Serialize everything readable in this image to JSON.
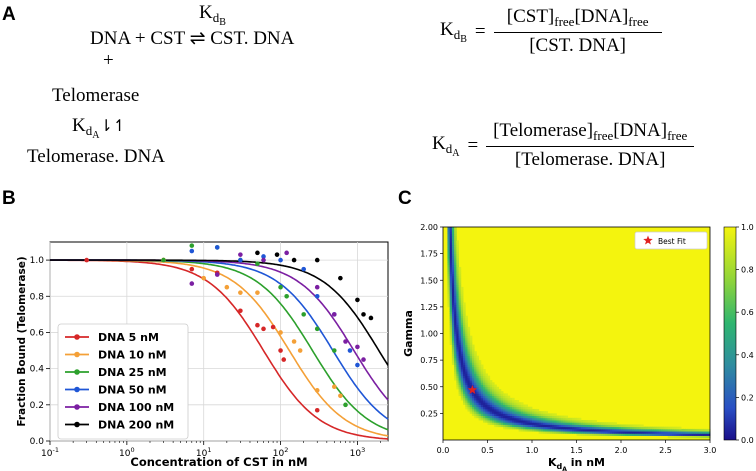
{
  "panel_a": {
    "letter": "A",
    "kdb_k": "K",
    "kdb_sub": "d",
    "kdb_subsub": "B",
    "reaction_top": "DNA + CST ⇌ CST. DNA",
    "plus": "+",
    "telomerase": "Telomerase",
    "kda_k": "K",
    "kda_sub": "d",
    "kda_subsub": "A",
    "arrow": "⇂↿",
    "telomerase_dna": "Telomerase. DNA",
    "eq1_numerator": "[CST]free[DNA]free",
    "eq1_num_a": "[CST]",
    "eq1_num_b": "free",
    "eq1_num_c": "[DNA]",
    "eq1_num_d": "free",
    "eq1_denominator": "[CST. DNA]",
    "eq2_num_a": "[Telomerase]",
    "eq2_num_b": "free",
    "eq2_num_c": "[DNA]",
    "eq2_num_d": "free",
    "eq2_denominator": "[Telomerase. DNA]",
    "equals": "="
  },
  "panel_b": {
    "letter": "B"
  },
  "panel_c": {
    "letter": "C"
  },
  "chart_data": [
    {
      "type": "line",
      "title": "",
      "xlabel": "Concentration of CST in nM",
      "ylabel": "Fraction Bound (Telomerase)",
      "xscale": "log",
      "xlim": [
        0.1,
        2500
      ],
      "ylim": [
        0.0,
        1.1
      ],
      "xticks": [
        "10^-1",
        "10^0",
        "10^1",
        "10^2",
        "10^3"
      ],
      "yticks": [
        "0.0",
        "0.2",
        "0.4",
        "0.6",
        "0.8",
        "1.0"
      ],
      "legend_position": "bottom-left",
      "series": [
        {
          "name": "DNA 5 nM",
          "color": "#d62728",
          "ec50": 60,
          "points": [
            [
              0.3,
              1.0
            ],
            [
              3,
              1.0
            ],
            [
              7,
              0.95
            ],
            [
              15,
              0.93
            ],
            [
              30,
              0.72
            ],
            [
              50,
              0.64
            ],
            [
              60,
              0.62
            ],
            [
              80,
              0.63
            ],
            [
              100,
              0.5
            ],
            [
              110,
              0.45
            ],
            [
              300,
              0.17
            ]
          ]
        },
        {
          "name": "DNA 10 nM",
          "color": "#f4a037",
          "ec50": 130,
          "points": [
            [
              3,
              1.0
            ],
            [
              10,
              0.9
            ],
            [
              20,
              0.85
            ],
            [
              30,
              0.82
            ],
            [
              50,
              0.82
            ],
            [
              100,
              0.6
            ],
            [
              150,
              0.55
            ],
            [
              180,
              0.5
            ],
            [
              300,
              0.28
            ],
            [
              500,
              0.3
            ],
            [
              600,
              0.25
            ]
          ]
        },
        {
          "name": "DNA 25 nM",
          "color": "#2ca02c",
          "ec50": 260,
          "points": [
            [
              3,
              1.0
            ],
            [
              7,
              1.08
            ],
            [
              15,
              1.07
            ],
            [
              30,
              1.0
            ],
            [
              50,
              0.98
            ],
            [
              100,
              0.85
            ],
            [
              120,
              0.8
            ],
            [
              200,
              0.7
            ],
            [
              300,
              0.62
            ],
            [
              500,
              0.5
            ],
            [
              700,
              0.2
            ]
          ]
        },
        {
          "name": "DNA 50 nM",
          "color": "#1f56d6",
          "ec50": 480,
          "points": [
            [
              7,
              1.05
            ],
            [
              15,
              1.07
            ],
            [
              30,
              1.0
            ],
            [
              60,
              1.02
            ],
            [
              100,
              1.0
            ],
            [
              200,
              0.95
            ],
            [
              300,
              0.8
            ],
            [
              500,
              0.7
            ],
            [
              800,
              0.5
            ],
            [
              1000,
              0.42
            ]
          ]
        },
        {
          "name": "DNA 100 nM",
          "color": "#7b1fa2",
          "ec50": 900,
          "points": [
            [
              7,
              0.87
            ],
            [
              15,
              0.92
            ],
            [
              30,
              1.03
            ],
            [
              60,
              1.0
            ],
            [
              120,
              1.04
            ],
            [
              300,
              0.85
            ],
            [
              500,
              0.7
            ],
            [
              700,
              0.55
            ],
            [
              1000,
              0.52
            ],
            [
              1200,
              0.45
            ]
          ]
        },
        {
          "name": "DNA 200 nM",
          "color": "#000000",
          "ec50": 1900,
          "points": [
            [
              50,
              1.04
            ],
            [
              90,
              1.03
            ],
            [
              150,
              1.0
            ],
            [
              300,
              1.0
            ],
            [
              600,
              0.9
            ],
            [
              1000,
              0.78
            ],
            [
              1200,
              0.7
            ],
            [
              1500,
              0.68
            ]
          ]
        }
      ]
    },
    {
      "type": "heatmap",
      "title": "",
      "xlabel": "K_dA in nM",
      "xlabel_k": "K",
      "xlabel_sub": "d",
      "xlabel_subsub": "A",
      "xlabel_rest": " in nM",
      "ylabel": "Gamma",
      "xlim": [
        0.0,
        3.0
      ],
      "ylim": [
        0.0,
        2.0
      ],
      "xticks": [
        "0.0",
        "0.5",
        "1.0",
        "1.5",
        "2.0",
        "2.5",
        "3.0"
      ],
      "yticks": [
        "0.25",
        "0.50",
        "0.75",
        "1.00",
        "1.25",
        "1.50",
        "1.75",
        "2.00"
      ],
      "colorbar_ticks": [
        "0.0",
        "0.2",
        "0.4",
        "0.6",
        "0.8",
        "1.0"
      ],
      "colorbar_range": [
        0.0,
        1.0
      ],
      "valley": "gamma * Kd = 0.155",
      "best_fit": {
        "label": "Best Fit",
        "kd": 0.33,
        "gamma": 0.47,
        "color": "#e02020"
      },
      "legend_position": "top-right"
    }
  ]
}
